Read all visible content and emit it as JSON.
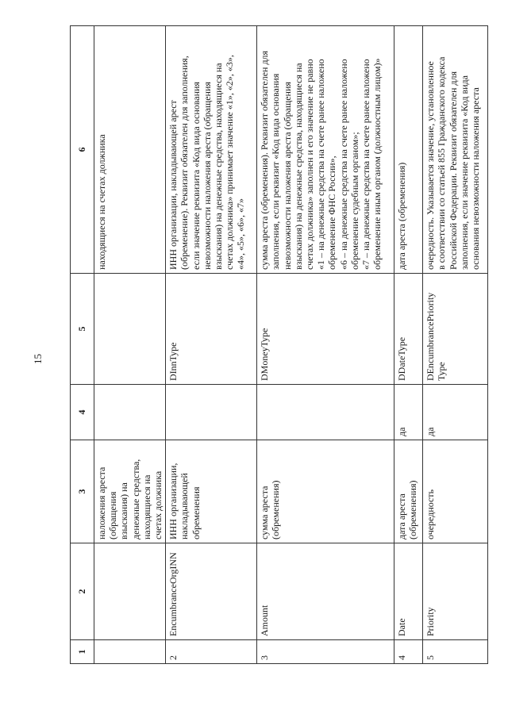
{
  "page_number": "15",
  "table": {
    "header": [
      "1",
      "2",
      "3",
      "4",
      "5",
      "6"
    ],
    "rows": [
      {
        "cells": [
          [],
          [],
          [
            "наложения ареста",
            "(обращения",
            "взыскания) на",
            "денежные средства,",
            "находящиеся на",
            "счетах должника"
          ],
          [],
          [],
          [
            "находящиеся на счетах должника"
          ]
        ]
      },
      {
        "cells": [
          [
            "2"
          ],
          [
            "EncumbranceOrgINN"
          ],
          [
            "ИНН организации,",
            "накладывающей",
            "обременения"
          ],
          [],
          [
            "DInnType"
          ],
          [
            "ИНН организации, накладывающей арест",
            "(обременение). Реквизит обязателен для заполнения,",
            "если значение реквизита «Код вида основания",
            "невозможности наложения ареста (обращения",
            "взыскания) на денежные средства, находящиеся на",
            "счетах должника» принимает значение «1», «2», «3»,",
            "«4», «5», «6», «7»"
          ]
        ]
      },
      {
        "cells": [
          [
            "3"
          ],
          [
            "Amount"
          ],
          [
            "сумма ареста",
            "(обременения)"
          ],
          [],
          [
            "DMoneyType"
          ],
          [
            "сумма ареста (обременения). Реквизит обязателен для",
            "заполнения, если реквизит «Код вида основания",
            "невозможности наложения ареста (обращения",
            "взыскания) на денежные средства, находящиеся на",
            "счетах должника» заполнен и его значение не равно",
            "«1 – на денежные средства на счете ранее наложено",
            "обременение ФНС России»,",
            "«6 – на денежные средства на счете ранее наложено",
            "обременение судебным органом»;",
            "«7 – на денежные средства на счете ранее наложено",
            "обременение иным органом (должностным лицом)»"
          ]
        ]
      },
      {
        "cells": [
          [
            "4"
          ],
          [
            "Date"
          ],
          [
            "дата ареста",
            "(обременения)"
          ],
          [
            "да"
          ],
          [
            "DDateType"
          ],
          [
            "дата ареста (обременения)"
          ]
        ]
      },
      {
        "cells": [
          [
            "5"
          ],
          [
            "Priority"
          ],
          [
            "очередность"
          ],
          [
            "да"
          ],
          [
            "DEncumbrancePriority",
            "Type"
          ],
          [
            "очередность. Указывается значение, установленное",
            "в соответствии со статьей 855 Гражданского кодекса",
            "Российской Федерации. Реквизит обязателен для",
            "заполнения, если значение реквизита «Код вида",
            "основания невозможности наложения ареста"
          ]
        ]
      }
    ]
  }
}
